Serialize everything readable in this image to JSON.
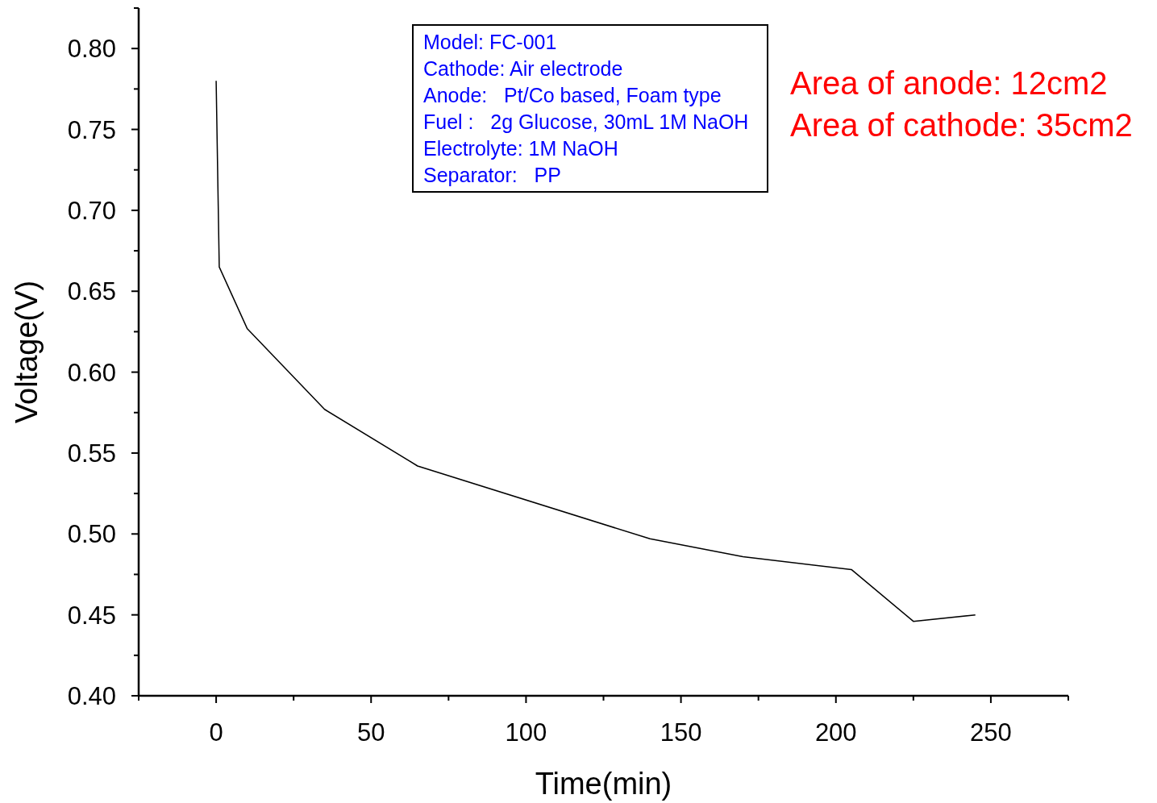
{
  "chart_data": {
    "type": "line",
    "xlabel": "Time(min)",
    "ylabel": "Voltage(V)",
    "x": [
      0,
      1,
      10,
      35,
      65,
      140,
      170,
      205,
      225,
      245
    ],
    "series": [
      {
        "color": "#000000",
        "values": [
          0.78,
          0.665,
          0.627,
          0.577,
          0.542,
          0.497,
          0.486,
          0.478,
          0.446,
          0.45
        ]
      }
    ],
    "xlim": [
      -25,
      275
    ],
    "xticks": [
      {
        "value": -25,
        "label": null
      },
      0,
      {
        "value": 25,
        "label": null
      },
      50,
      {
        "value": 75,
        "label": null
      },
      100,
      {
        "value": 125,
        "label": null
      },
      150,
      {
        "value": 175,
        "label": null
      },
      200,
      {
        "value": 225,
        "label": null
      },
      250,
      {
        "value": 275,
        "label": null
      }
    ],
    "ylim": [
      0.4,
      0.825
    ],
    "yticks": [
      {
        "value": 0.4,
        "label": "0.40"
      },
      {
        "value": 0.425,
        "label": null
      },
      {
        "value": 0.45,
        "label": "0.45"
      },
      {
        "value": 0.475,
        "label": null
      },
      {
        "value": 0.5,
        "label": "0.50"
      },
      {
        "value": 0.525,
        "label": null
      },
      {
        "value": 0.55,
        "label": "0.55"
      },
      {
        "value": 0.575,
        "label": null
      },
      {
        "value": 0.6,
        "label": "0.60"
      },
      {
        "value": 0.625,
        "label": null
      },
      {
        "value": 0.65,
        "label": "0.65"
      },
      {
        "value": 0.675,
        "label": null
      },
      {
        "value": 0.7,
        "label": "0.70"
      },
      {
        "value": 0.725,
        "label": null
      },
      {
        "value": 0.75,
        "label": "0.75"
      },
      {
        "value": 0.775,
        "label": null
      },
      {
        "value": 0.8,
        "label": "0.80"
      },
      {
        "value": 0.825,
        "label": null
      }
    ],
    "marker": "none",
    "line_style": "solid",
    "annotations": [
      "Model: FC-001",
      "Cathode: Air electrode",
      "Anode:   Pt/Co based, Foam type",
      "Fuel :   2g Glucose, 30mL 1M NaOH",
      "Electrolyte: 1M NaOH",
      "Separator:   PP",
      "Area of anode: 12cm2",
      "Area of cathode: 35cm2"
    ]
  }
}
